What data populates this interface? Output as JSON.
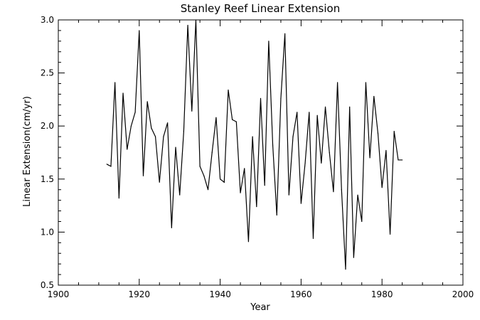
{
  "chart_data": {
    "type": "line",
    "title": "Stanley Reef Linear Extension",
    "xlabel": "Year",
    "ylabel": "Linear Extension(cm/yr)",
    "xlim": [
      1900,
      2000
    ],
    "ylim": [
      0.5,
      3.0
    ],
    "x_ticks": [
      1900,
      1920,
      1940,
      1960,
      1980,
      2000
    ],
    "x_tick_labels": [
      "1900",
      "1920",
      "1940",
      "1960",
      "1980",
      "2000"
    ],
    "y_ticks": [
      0.5,
      1.0,
      1.5,
      2.0,
      2.5,
      3.0
    ],
    "y_tick_labels": [
      "0.5",
      "1.0",
      "1.5",
      "2.0",
      "2.5",
      "3.0"
    ],
    "grid": false,
    "line_color": "#000000",
    "series": [
      {
        "x": [
          1912,
          1913,
          1914,
          1915,
          1916,
          1917,
          1918,
          1919,
          1920,
          1921,
          1922,
          1923,
          1924,
          1925,
          1926,
          1927,
          1928,
          1929,
          1930,
          1931,
          1932,
          1933,
          1934,
          1935,
          1936,
          1937,
          1938,
          1939,
          1940,
          1941,
          1942,
          1943,
          1944,
          1945,
          1946,
          1947,
          1948,
          1949,
          1950,
          1951,
          1952,
          1953,
          1954,
          1955,
          1956,
          1957,
          1958,
          1959,
          1960,
          1961,
          1962,
          1963,
          1964,
          1965,
          1966,
          1967,
          1968,
          1969,
          1970,
          1971,
          1972,
          1973,
          1974,
          1975,
          1976,
          1977,
          1978,
          1979,
          1980,
          1981,
          1982,
          1983,
          1984,
          1985
        ],
        "values": [
          1.64,
          1.62,
          2.41,
          1.32,
          2.31,
          1.78,
          2.0,
          2.13,
          2.9,
          1.53,
          2.23,
          1.98,
          1.9,
          1.47,
          1.9,
          2.03,
          1.04,
          1.8,
          1.35,
          1.95,
          2.95,
          2.14,
          3.0,
          1.62,
          1.53,
          1.4,
          1.75,
          2.08,
          1.5,
          1.47,
          2.34,
          2.06,
          2.04,
          1.37,
          1.6,
          0.91,
          1.9,
          1.24,
          2.26,
          1.44,
          2.8,
          1.82,
          1.16,
          2.26,
          2.87,
          1.35,
          1.9,
          2.13,
          1.27,
          1.65,
          2.13,
          0.94,
          2.1,
          1.65,
          2.18,
          1.75,
          1.38,
          2.41,
          1.4,
          0.65,
          2.18,
          0.76,
          1.35,
          1.1,
          2.41,
          1.7,
          2.28,
          1.93,
          1.42,
          1.77,
          0.98,
          1.95,
          1.68,
          1.68
        ]
      }
    ]
  }
}
